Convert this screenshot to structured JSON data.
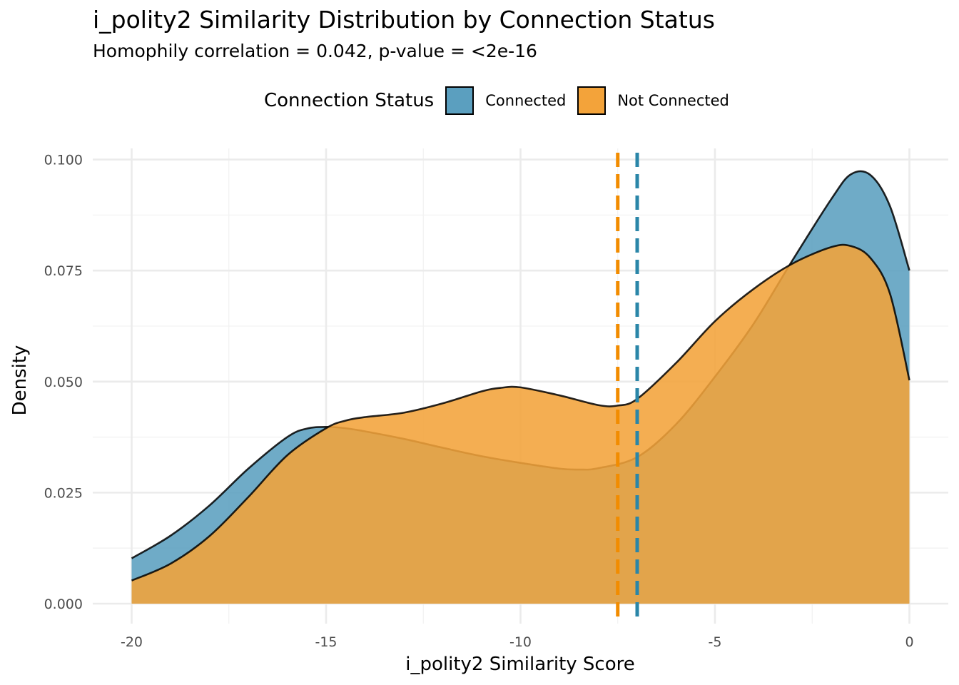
{
  "chart_data": {
    "type": "area",
    "title": "i_polity2 Similarity Distribution by Connection Status",
    "subtitle": "Homophily correlation = 0.042, p-value = <2e-16",
    "xlabel": "i_polity2 Similarity Score",
    "ylabel": "Density",
    "xlim": [
      -21,
      1
    ],
    "ylim": [
      -0.0045,
      0.1025
    ],
    "x_ticks": [
      -20,
      -15,
      -10,
      -5,
      0
    ],
    "x_tick_labels": [
      "-20",
      "-15",
      "-10",
      "-5",
      "0"
    ],
    "y_ticks": [
      0,
      0.025,
      0.05,
      0.075,
      0.1
    ],
    "y_tick_labels": [
      "0.000",
      "0.025",
      "0.050",
      "0.075",
      "0.100"
    ],
    "grid": true,
    "legend": {
      "title": "Connection Status",
      "placement": "top"
    },
    "series": [
      {
        "name": "Connected",
        "color": "#5b9fbf",
        "mean_line_color": "#2a86a8",
        "mean": -7.0,
        "x": [
          -20,
          -19,
          -18,
          -17,
          -16,
          -15.5,
          -15,
          -14.5,
          -14,
          -13,
          -12,
          -11,
          -10,
          -9,
          -8.5,
          -8,
          -7,
          -6,
          -5,
          -4,
          -3,
          -2,
          -1.5,
          -1,
          -0.5,
          0
        ],
        "y": [
          0.0102,
          0.0153,
          0.0221,
          0.0304,
          0.0375,
          0.0394,
          0.0398,
          0.0395,
          0.0388,
          0.0371,
          0.0351,
          0.0332,
          0.0317,
          0.0304,
          0.0302,
          0.0305,
          0.033,
          0.0404,
          0.0511,
          0.0631,
          0.0774,
          0.0912,
          0.0967,
          0.0965,
          0.0895,
          0.075
        ]
      },
      {
        "name": "Not Connected",
        "color": "#f3a33a",
        "mean_line_color": "#f28c00",
        "mean": -7.5,
        "x": [
          -20,
          -19,
          -18,
          -17,
          -16,
          -15,
          -14.5,
          -14,
          -13,
          -12,
          -11,
          -10.5,
          -10,
          -9,
          -8,
          -7.5,
          -7,
          -6,
          -5,
          -4,
          -3,
          -2,
          -1.5,
          -1,
          -0.5,
          0
        ],
        "y": [
          0.0052,
          0.009,
          0.0152,
          0.024,
          0.0334,
          0.0395,
          0.0412,
          0.042,
          0.043,
          0.0451,
          0.0478,
          0.0486,
          0.0487,
          0.0469,
          0.0447,
          0.0446,
          0.0461,
          0.0542,
          0.0636,
          0.0709,
          0.0766,
          0.0803,
          0.0805,
          0.0778,
          0.0698,
          0.0503
        ]
      }
    ]
  }
}
